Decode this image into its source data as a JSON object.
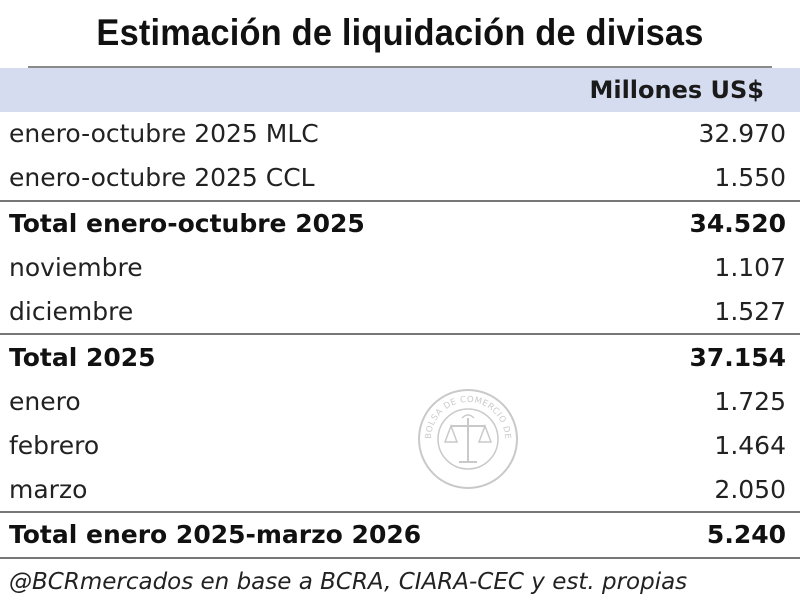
{
  "title": "Estimación de liquidación de divisas",
  "unit_header": "Millones US$",
  "rows": [
    {
      "label": "enero-octubre 2025 MLC",
      "value": "32.970"
    },
    {
      "label": "enero-octubre 2025 CCL",
      "value": "1.550"
    },
    {
      "label": "Total enero-octubre 2025",
      "value": "34.520"
    },
    {
      "label": "noviembre",
      "value": "1.107"
    },
    {
      "label": "diciembre",
      "value": "1.527"
    },
    {
      "label": "Total 2025",
      "value": "37.154"
    },
    {
      "label": "enero",
      "value": "1.725"
    },
    {
      "label": "febrero",
      "value": "1.464"
    },
    {
      "label": "marzo",
      "value": "2.050"
    },
    {
      "label": "Total enero 2025-marzo 2026",
      "value": "5.240"
    }
  ],
  "footer": "@BCRmercados en base a BCRA, CIARA-CEC y est. propias",
  "watermark": "BOLSA DE COMERCIO DE ROSARIO"
}
